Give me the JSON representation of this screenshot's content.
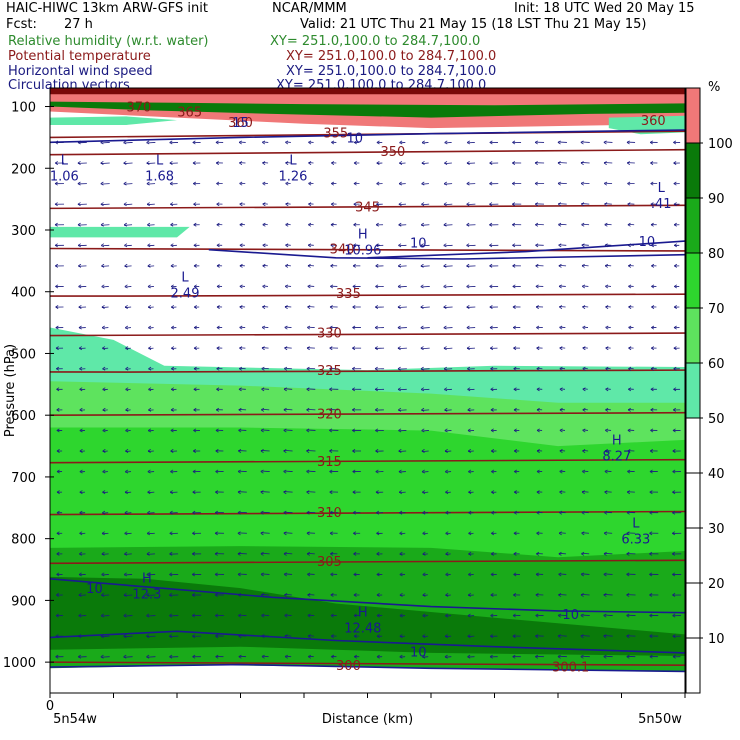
{
  "header": {
    "model": "HAIC-HIWC 13km ARW-GFS init",
    "org": "NCAR/MMM",
    "init": "Init: 18 UTC Wed 20 May 15",
    "fcst_label": "Fcst:",
    "fcst_value": "27 h",
    "valid": "Valid: 21 UTC Thu 21 May 15 (18 LST Thu 21 May 15)"
  },
  "fields": [
    {
      "name": "Relative humidity (w.r.t. water)",
      "xy": "XY= 251.0,100.0 to 284.7,100.0",
      "color": "#2e8b2e"
    },
    {
      "name": "Potential temperature",
      "xy": "XY= 251.0,100.0 to 284.7,100.0",
      "color": "#8b1a1a"
    },
    {
      "name": "Horizontal wind speed",
      "xy": "XY= 251.0,100.0 to 284.7,100.0",
      "color": "#1a1a80"
    },
    {
      "name": "Circulation vectors",
      "xy": "XY= 251.0,100.0 to 284.7,100.0",
      "color": "#1a1a80"
    }
  ],
  "chart_data": {
    "type": "cross-section",
    "ylabel": "Pressure (hPa)",
    "xlabel": "Distance (km)",
    "x_start_label": "0",
    "x_left_label": "5n54w",
    "x_right_label": "5n50w",
    "y_ticks": [
      100,
      200,
      300,
      400,
      500,
      600,
      700,
      800,
      900,
      1000
    ],
    "ylim": [
      1050,
      70
    ],
    "colorbar": {
      "unit": "%",
      "ticks": [
        10,
        20,
        30,
        40,
        50,
        60,
        70,
        80,
        90,
        100
      ],
      "bands": [
        {
          "min": 0,
          "max": 50,
          "color": "#ffffff"
        },
        {
          "min": 50,
          "max": 60,
          "color": "#5fe8a8"
        },
        {
          "min": 60,
          "max": 70,
          "color": "#5ee35e"
        },
        {
          "min": 70,
          "max": 80,
          "color": "#2ed62e"
        },
        {
          "min": 80,
          "max": 90,
          "color": "#1aaa1a"
        },
        {
          "min": 90,
          "max": 100,
          "color": "#0a7a0a"
        },
        {
          "min": 100,
          "max": 110,
          "color": "#f07878"
        }
      ]
    },
    "theta_labels": [
      {
        "text": "300",
        "x": 0.47,
        "p": 1005
      },
      {
        "text": "300.1",
        "x": 0.82,
        "p": 1007
      },
      {
        "text": "305",
        "x": 0.44,
        "p": 836
      },
      {
        "text": "310",
        "x": 0.44,
        "p": 757
      },
      {
        "text": "315",
        "x": 0.44,
        "p": 674
      },
      {
        "text": "320",
        "x": 0.44,
        "p": 597
      },
      {
        "text": "325",
        "x": 0.44,
        "p": 527
      },
      {
        "text": "330",
        "x": 0.44,
        "p": 466
      },
      {
        "text": "335",
        "x": 0.47,
        "p": 402
      },
      {
        "text": "340",
        "x": 0.46,
        "p": 330
      },
      {
        "text": "345",
        "x": 0.5,
        "p": 262
      },
      {
        "text": "350",
        "x": 0.54,
        "p": 172
      },
      {
        "text": "355",
        "x": 0.45,
        "p": 142
      },
      {
        "text": "360",
        "x": 0.3,
        "p": 125
      },
      {
        "text": "365",
        "x": 0.22,
        "p": 108
      },
      {
        "text": "370",
        "x": 0.14,
        "p": 100
      },
      {
        "text": "360",
        "x": 0.95,
        "p": 122
      }
    ],
    "theta_levels": [
      {
        "p_left": 1000,
        "p_right": 1005
      },
      {
        "p_left": 840,
        "p_right": 835
      },
      {
        "p_left": 761,
        "p_right": 756
      },
      {
        "p_left": 677,
        "p_right": 672
      },
      {
        "p_left": 600,
        "p_right": 596
      },
      {
        "p_left": 530,
        "p_right": 527
      },
      {
        "p_left": 471,
        "p_right": 467
      },
      {
        "p_left": 407,
        "p_right": 404
      },
      {
        "p_left": 330,
        "p_right": 334
      },
      {
        "p_left": 265,
        "p_right": 260
      },
      {
        "p_left": 178,
        "p_right": 170
      },
      {
        "p_left": 150,
        "p_right": 140
      }
    ],
    "wind_labels": [
      {
        "text": "10",
        "x": 0.07,
        "p": 880
      },
      {
        "text": "10",
        "x": 0.58,
        "p": 320
      },
      {
        "text": "10",
        "x": 0.94,
        "p": 318
      },
      {
        "text": "10",
        "x": 0.82,
        "p": 922
      },
      {
        "text": "10",
        "x": 0.58,
        "p": 983
      },
      {
        "text": "10",
        "x": 0.48,
        "p": 150
      },
      {
        "text": "15",
        "x": 0.3,
        "p": 125
      }
    ],
    "wind_extrema": [
      {
        "type": "H",
        "value": "10.96",
        "x": 0.48,
        "p": 330
      },
      {
        "type": "H",
        "value": "8.27",
        "x": 0.88,
        "p": 664
      },
      {
        "type": "H",
        "value": "12.3",
        "x": 0.14,
        "p": 887
      },
      {
        "type": "H",
        "value": "12.48",
        "x": 0.48,
        "p": 942
      },
      {
        "type": "L",
        "value": "1.06",
        "x": 0.01,
        "p": 210
      },
      {
        "type": "L",
        "value": "1.68",
        "x": 0.16,
        "p": 210
      },
      {
        "type": "L",
        "value": "1.26",
        "x": 0.37,
        "p": 210
      },
      {
        "type": "L",
        "value": ".41",
        "x": 0.95,
        "p": 255
      },
      {
        "type": "L",
        "value": "2.49",
        "x": 0.2,
        "p": 400
      },
      {
        "type": "L",
        "value": "6.33",
        "x": 0.91,
        "p": 798
      }
    ]
  }
}
